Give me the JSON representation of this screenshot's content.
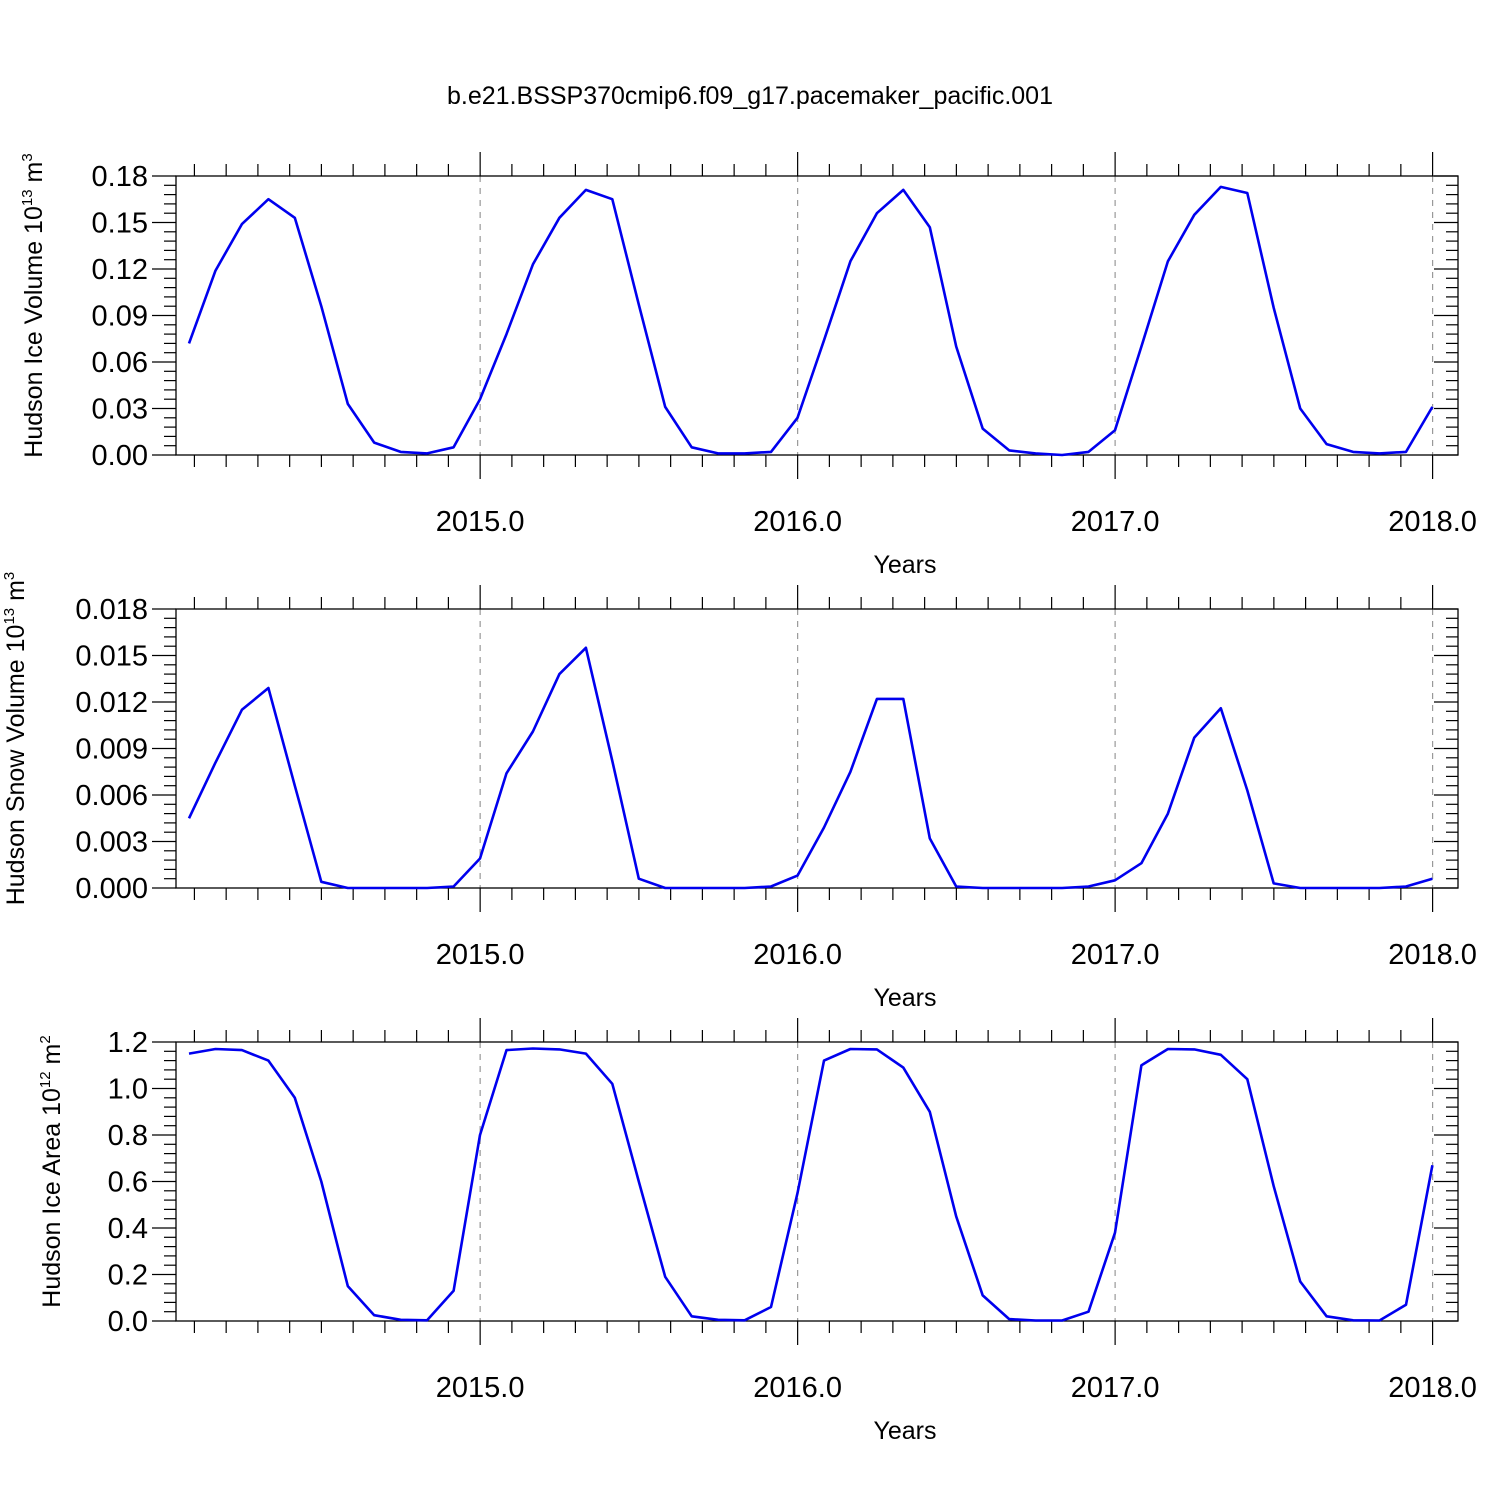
{
  "title": "b.e21.BSSP370cmip6.f09_g17.pacemaker_pacific.001",
  "line_color": "#0000ee",
  "grid_color": "#999999",
  "chart_data": [
    {
      "type": "line",
      "ylabel": "Hudson Ice Volume 10",
      "ylabel_exp": "13",
      "ylabel_unit": " m",
      "ylabel_unit_exp": "3",
      "xlabel": "Years",
      "xlim": [
        2014.042,
        2018.08
      ],
      "ylim": [
        0,
        0.18
      ],
      "xticks": [
        2015.0,
        2016.0,
        2017.0,
        2018.0
      ],
      "xtick_labels": [
        "2015.0",
        "2016.0",
        "2017.0",
        "2018.0"
      ],
      "yticks": [
        0.0,
        0.03,
        0.06,
        0.09,
        0.12,
        0.15,
        0.18
      ],
      "ytick_labels": [
        "0.00",
        "0.03",
        "0.06",
        "0.09",
        "0.12",
        "0.15",
        "0.18"
      ],
      "grid": "vertical dashed at major x ticks",
      "series": [
        {
          "x_start": 2014.083,
          "x_step": 0.08333,
          "values": [
            0.072,
            0.119,
            0.149,
            0.165,
            0.153,
            0.096,
            0.033,
            0.008,
            0.002,
            0.001,
            0.005,
            0.036,
            0.078,
            0.123,
            0.153,
            0.171,
            0.165,
            0.097,
            0.031,
            0.005,
            0.001,
            0.001,
            0.002,
            0.024,
            0.074,
            0.125,
            0.156,
            0.171,
            0.147,
            0.07,
            0.017,
            0.003,
            0.001,
            0.0,
            0.002,
            0.016,
            0.07,
            0.125,
            0.155,
            0.173,
            0.169,
            0.095,
            0.03,
            0.007,
            0.002,
            0.001,
            0.002,
            0.031
          ]
        }
      ]
    },
    {
      "type": "line",
      "ylabel": "Hudson Snow Volume 10",
      "ylabel_exp": "13",
      "ylabel_unit": " m",
      "ylabel_unit_exp": "3",
      "xlabel": "Years",
      "xlim": [
        2014.042,
        2018.08
      ],
      "ylim": [
        0,
        0.018
      ],
      "xticks": [
        2015.0,
        2016.0,
        2017.0,
        2018.0
      ],
      "xtick_labels": [
        "2015.0",
        "2016.0",
        "2017.0",
        "2018.0"
      ],
      "yticks": [
        0.0,
        0.003,
        0.006,
        0.009,
        0.012,
        0.015,
        0.018
      ],
      "ytick_labels": [
        "0.000",
        "0.003",
        "0.006",
        "0.009",
        "0.012",
        "0.015",
        "0.018"
      ],
      "grid": "vertical dashed at major x ticks",
      "series": [
        {
          "x_start": 2014.083,
          "x_step": 0.08333,
          "values": [
            0.0045,
            0.0081,
            0.0115,
            0.0129,
            0.0066,
            0.0004,
            0.0,
            0.0,
            0.0,
            0.0,
            0.0001,
            0.0019,
            0.0074,
            0.0101,
            0.0138,
            0.0155,
            0.0082,
            0.0006,
            0.0,
            0.0,
            0.0,
            0.0,
            0.0001,
            0.0008,
            0.0039,
            0.0075,
            0.0122,
            0.0122,
            0.0032,
            0.0001,
            0.0,
            0.0,
            0.0,
            0.0,
            0.0001,
            0.0005,
            0.0016,
            0.0048,
            0.0097,
            0.0116,
            0.0063,
            0.0003,
            0.0,
            0.0,
            0.0,
            0.0,
            0.0001,
            0.0006
          ]
        }
      ]
    },
    {
      "type": "line",
      "ylabel": "Hudson Ice Area 10",
      "ylabel_exp": "12",
      "ylabel_unit": " m",
      "ylabel_unit_exp": "2",
      "xlabel": "Years",
      "xlim": [
        2014.042,
        2018.08
      ],
      "ylim": [
        0,
        1.2
      ],
      "xticks": [
        2015.0,
        2016.0,
        2017.0,
        2018.0
      ],
      "xtick_labels": [
        "2015.0",
        "2016.0",
        "2017.0",
        "2018.0"
      ],
      "yticks": [
        0.0,
        0.2,
        0.4,
        0.6,
        0.8,
        1.0,
        1.2
      ],
      "ytick_labels": [
        "0.0",
        "0.2",
        "0.4",
        "0.6",
        "0.8",
        "1.0",
        "1.2"
      ],
      "grid": "vertical dashed at major x ticks",
      "series": [
        {
          "x_start": 2014.083,
          "x_step": 0.08333,
          "values": [
            1.15,
            1.17,
            1.165,
            1.12,
            0.96,
            0.6,
            0.15,
            0.025,
            0.005,
            0.003,
            0.13,
            0.8,
            1.165,
            1.172,
            1.168,
            1.15,
            1.02,
            0.6,
            0.19,
            0.02,
            0.005,
            0.003,
            0.06,
            0.55,
            1.12,
            1.17,
            1.168,
            1.09,
            0.9,
            0.45,
            0.11,
            0.008,
            0.002,
            0.002,
            0.04,
            0.38,
            1.1,
            1.17,
            1.168,
            1.145,
            1.04,
            0.58,
            0.17,
            0.02,
            0.003,
            0.002,
            0.07,
            0.67
          ]
        }
      ]
    }
  ]
}
